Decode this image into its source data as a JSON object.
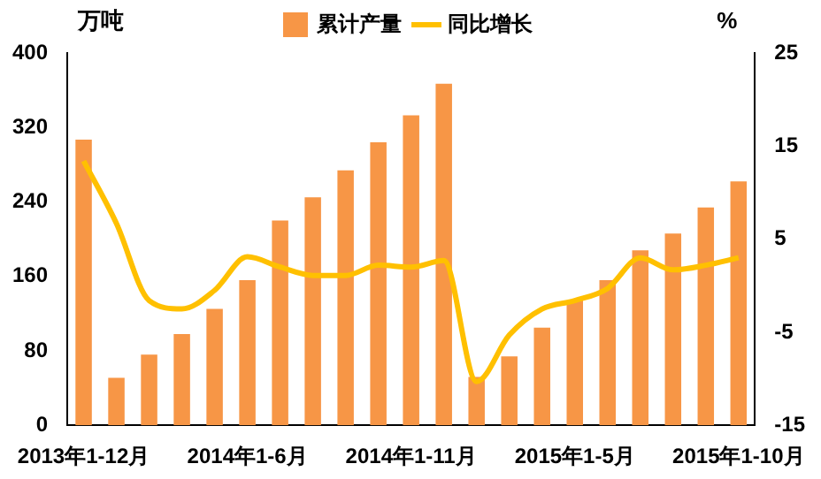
{
  "chart_data": {
    "type": "bar",
    "ylabel": "万吨",
    "y2label": "%",
    "categories": [
      "2013年1-12月",
      null,
      null,
      null,
      null,
      "2014年1-6月",
      null,
      null,
      null,
      null,
      "2014年1-11月",
      null,
      null,
      null,
      null,
      "2015年1-5月",
      null,
      null,
      null,
      null,
      "2015年1-10月"
    ],
    "series": [
      {
        "name": "累计产量",
        "color": "#f79646",
        "values": [
          307,
          51,
          76,
          98,
          125,
          156,
          220,
          245,
          274,
          304,
          333,
          367,
          52,
          74,
          105,
          134,
          156,
          188,
          206,
          234,
          262
        ]
      },
      {
        "name": "同比增长",
        "type": "line",
        "axis": "y2",
        "color": "#ffc000",
        "values": [
          13.4,
          6.7,
          -1.6,
          -2.5,
          -0.5,
          3.1,
          2.0,
          1.1,
          1.1,
          2.2,
          2.0,
          2.7,
          -10.3,
          -5.3,
          -2.5,
          -1.6,
          -0.3,
          3.0,
          1.7,
          2.2,
          3.0
        ]
      }
    ],
    "ylim": [
      0,
      400
    ],
    "yticks": [
      0,
      80,
      160,
      240,
      320,
      400
    ],
    "y2lim": [
      -15,
      25
    ],
    "y2ticks": [
      -15,
      -5,
      5,
      15,
      25
    ],
    "grid": false,
    "legend": "top",
    "marker": "none"
  }
}
